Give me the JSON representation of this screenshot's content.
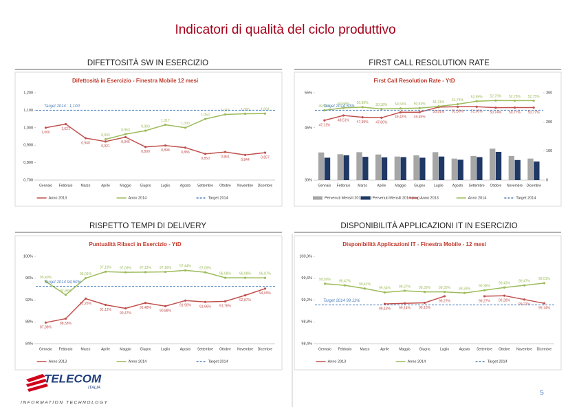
{
  "header": {
    "title": "Indicatori di qualità del ciclo produttivo"
  },
  "panels": [
    {
      "heading": "DIFETTOSITÀ SW IN ESERCIZIO"
    },
    {
      "heading": "FIRST CALL RESOLUTION RATE"
    },
    {
      "heading": "RISPETTO TEMPI DI DELIVERY"
    },
    {
      "heading": "DISPONIBILITÀ APPLICAZIONI IT IN ESERCIZIO"
    }
  ],
  "chart_data": [
    {
      "type": "line",
      "title": "Difettosità in Esercizio - Finestra Mobile 12 mesi",
      "categories": [
        "Gennaio",
        "Febbraio",
        "Marzo",
        "Aprile",
        "Maggio",
        "Giugno",
        "Luglio",
        "Agosto",
        "Settembre",
        "Ottobre",
        "Novembre",
        "Dicembre"
      ],
      "ylim": [
        0.7,
        1.2
      ],
      "yticks": [
        {
          "value": 0.7,
          "label": "0,700"
        },
        {
          "value": 0.8,
          "label": "0,800"
        },
        {
          "value": 0.9,
          "label": "0,900"
        },
        {
          "value": 1.0,
          "label": "1,000"
        },
        {
          "value": 1.1,
          "label": "1,100"
        },
        {
          "value": 1.2,
          "label": "1,200"
        }
      ],
      "series": [
        {
          "name": "Anno 2013",
          "color": "#c0504d",
          "values": [
            1.0,
            1.021,
            0.94,
            0.921,
            0.946,
            0.89,
            0.898,
            0.886,
            0.85,
            0.861,
            0.844,
            0.857
          ],
          "value_labels": [
            "1,000",
            "1,021",
            "0,940",
            "0,921",
            "0,946",
            "0,890",
            "0,898",
            "0,886",
            "0,850",
            "0,861",
            "0,844",
            "0,857"
          ]
        },
        {
          "name": "Anno 2014",
          "color": "#9bbb59",
          "values": [
            null,
            null,
            null,
            0.934,
            0.963,
            0.983,
            1.017,
            1.0,
            1.05,
            1.076,
            1.08,
            1.081
          ],
          "value_labels": [
            null,
            null,
            null,
            "0,934",
            "0,963",
            "0,983",
            "1,017",
            "1,000",
            "1,050",
            "1,076",
            "1,080",
            "1,081"
          ]
        }
      ],
      "target": {
        "name": "Target 2014",
        "value": 1.1,
        "label": "Target 2014 : 1,100",
        "color": "#4f81bd"
      }
    },
    {
      "type": "combo",
      "title": "First Call Resolution Rate - YtD",
      "categories": [
        "Gennaio",
        "Febbraio",
        "Marzo",
        "Aprile",
        "Maggio",
        "Giugno",
        "Luglio",
        "Agosto",
        "Settembre",
        "Ottobre",
        "Novembre",
        "Dicembre"
      ],
      "ylim": [
        30,
        55
      ],
      "yticks": [
        {
          "value": 30,
          "label": "30%"
        },
        {
          "value": 45,
          "label": "45%"
        },
        {
          "value": 55,
          "label": "55%"
        }
      ],
      "y2lim": [
        0,
        300
      ],
      "y2ticks": [
        0,
        100,
        200,
        300
      ],
      "series": [
        {
          "name": "Pervenuti Mensili 2013 (mq)",
          "kind": "bar",
          "axis": "y2",
          "color": "#a6a6a6",
          "values": [
            95,
            89,
            96,
            88,
            81,
            85,
            96,
            74,
            83,
            108,
            83,
            74
          ]
        },
        {
          "name": "Pervenuti Mensili 2014 (mq)",
          "kind": "bar",
          "axis": "y2",
          "color": "#1f3864",
          "values": [
            77,
            85,
            80,
            78,
            79,
            77,
            81,
            70,
            79,
            97,
            69,
            64
          ]
        },
        {
          "name": "Anno 2013",
          "kind": "line",
          "color": "#c0504d",
          "values": [
            47.11,
            48.51,
            47.99,
            47.86,
            49.42,
            49.45,
            50.91,
            51.0,
            51.0,
            50.74,
            50.77,
            50.77
          ],
          "value_labels": [
            "47,11%",
            "48,51%",
            "47,99%",
            "47,86%",
            "49,42%",
            "49,45%",
            "50,91%",
            "51,00%",
            "51,00%",
            "50,74%",
            "50,77%",
            "50,77%"
          ]
        },
        {
          "name": "Anno 2014",
          "kind": "line",
          "color": "#9bbb59",
          "values": [
            49.98,
            50.68,
            50.89,
            50.38,
            50.53,
            50.63,
            51.11,
            51.74,
            52.59,
            52.79,
            52.75,
            52.75
          ],
          "value_labels": [
            "49,98%",
            "50,68%",
            "50,89%",
            "50,38%",
            "50,53%",
            "50,63%",
            "51,11%",
            "51,74%",
            "52,59%",
            "52,79%",
            "52,75%",
            "52,75%"
          ]
        }
      ],
      "target": {
        "name": "Target 2014",
        "value": 50,
        "label": "Target 2014 50%",
        "color": "#4f81bd"
      }
    },
    {
      "type": "line",
      "title": "Puntualità Rilasci in Esercizio - YtD",
      "categories": [
        "Gennaio",
        "Febbraio",
        "Marzo",
        "Aprile",
        "Maggio",
        "Giugno",
        "Luglio",
        "Agosto",
        "Settembre",
        "Ottobre",
        "Novembre",
        "Dicembre"
      ],
      "ylim": [
        84,
        100
      ],
      "yticks": [
        {
          "value": 84,
          "label": "84%"
        },
        {
          "value": 88,
          "label": "88%"
        },
        {
          "value": 92,
          "label": "92%"
        },
        {
          "value": 96,
          "label": "96%"
        },
        {
          "value": 100,
          "label": "100%"
        }
      ],
      "series": [
        {
          "name": "Anno 2013",
          "color": "#c0504d",
          "values": [
            87.88,
            88.58,
            92.26,
            91.12,
            90.47,
            91.48,
            90.88,
            91.9,
            91.66,
            91.76,
            92.87,
            94.09
          ],
          "value_labels": [
            "87,88%",
            "88,58%",
            "92,26%",
            "91,12%",
            "90,47%",
            "91,48%",
            "90,88%",
            "91,90%",
            "91,66%",
            "91,76%",
            "92,87%",
            "94,09%"
          ]
        },
        {
          "name": "Anno 2014",
          "color": "#9bbb59",
          "values": [
            95.4,
            92.95,
            96.01,
            97.19,
            97.09,
            97.12,
            97.16,
            97.44,
            97.09,
            96.08,
            96.08,
            96.07
          ],
          "value_labels": [
            "95,40%",
            "92,95%",
            "96,01%",
            "97,19%",
            "97,09%",
            "97,12%",
            "97,16%",
            "97,44%",
            "97,09%",
            "96,08%",
            "96,08%",
            "96,07%"
          ]
        }
      ],
      "target": {
        "name": "Target 2014",
        "value": 94.5,
        "label": "Target 2014 94,50%",
        "color": "#4f81bd"
      }
    },
    {
      "type": "line",
      "title": "Disponibilità Applicazioni IT - Finestra Mobile - 12 mesi",
      "categories": [
        "Gennaio",
        "Febbraio",
        "Marzo",
        "Aprile",
        "Maggio",
        "Giugno",
        "Luglio",
        "Agosto",
        "Settembre",
        "Ottobre",
        "Novembre",
        "Dicembre"
      ],
      "ylim": [
        98.4,
        100
      ],
      "yticks": [
        {
          "value": 98.4,
          "label": "98,4%"
        },
        {
          "value": 98.8,
          "label": "98,8%"
        },
        {
          "value": 99.2,
          "label": "99,2%"
        },
        {
          "value": 99.6,
          "label": "99,6%"
        },
        {
          "value": 100,
          "label": "100,0%"
        }
      ],
      "series": [
        {
          "name": "Anno 2013",
          "color": "#c0504d",
          "values": [
            null,
            null,
            null,
            99.13,
            99.14,
            99.15,
            99.27,
            null,
            99.27,
            99.28,
            99.21,
            99.14
          ],
          "value_labels": [
            null,
            null,
            null,
            "99,13%",
            "99,14%",
            "99,15%",
            "99,27%",
            null,
            "99,27%",
            "99,28%",
            "99,21%",
            "99,14%"
          ]
        },
        {
          "name": "Anno 2014",
          "color": "#9bbb59",
          "values": [
            99.5,
            99.47,
            99.41,
            99.34,
            99.37,
            99.35,
            99.35,
            99.33,
            99.38,
            99.43,
            99.47,
            99.51
          ],
          "value_labels": [
            "99,50%",
            "99,47%",
            "99,41%",
            "99,34%",
            "99,37%",
            "99,35%",
            "99,35%",
            "99,33%",
            "99,38%",
            "99,43%",
            "99,47%",
            "99,51%"
          ]
        }
      ],
      "target": {
        "name": "Target 2014",
        "value": 99.11,
        "label": "Target 2014 99,11%",
        "color": "#4f81bd"
      }
    }
  ],
  "footer": {
    "logo": "TELECOM",
    "logo_sub": "ITALIA",
    "tagline": "INFORMATION TECHNOLOGY",
    "page": "5"
  }
}
